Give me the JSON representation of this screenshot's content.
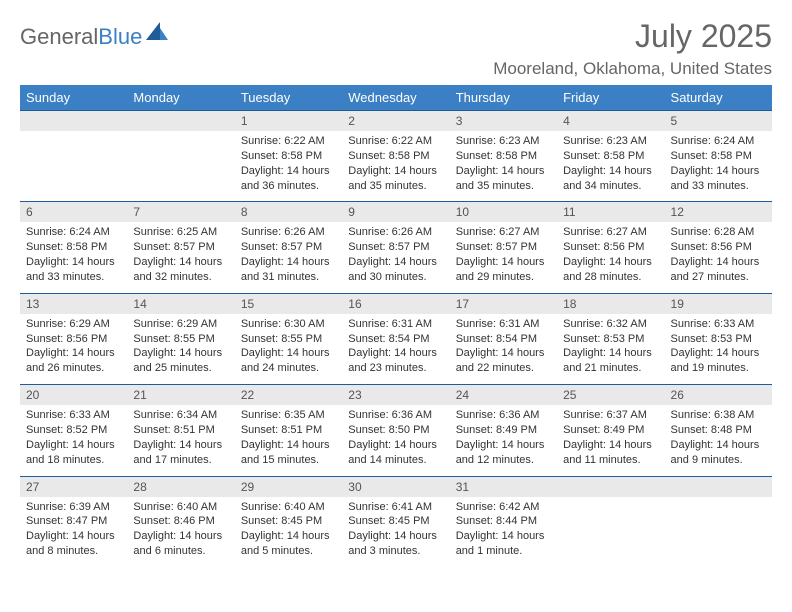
{
  "brand": {
    "part1": "General",
    "part2": "Blue"
  },
  "title": "July 2025",
  "location": "Mooreland, Oklahoma, United States",
  "colors": {
    "header_bg": "#3b7fc4",
    "header_text": "#ffffff",
    "daynum_bg": "#e9e9e9",
    "rule": "#1f5c99",
    "body_text": "#333333",
    "muted_text": "#666666",
    "background": "#ffffff"
  },
  "typography": {
    "font_family": "Arial",
    "title_fontsize": 32,
    "location_fontsize": 17,
    "dayhead_fontsize": 13,
    "daynum_fontsize": 12,
    "data_fontsize": 11
  },
  "day_headers": [
    "Sunday",
    "Monday",
    "Tuesday",
    "Wednesday",
    "Thursday",
    "Friday",
    "Saturday"
  ],
  "weeks": [
    [
      {
        "n": "",
        "sr": "",
        "ss": "",
        "dl": ""
      },
      {
        "n": "",
        "sr": "",
        "ss": "",
        "dl": ""
      },
      {
        "n": "1",
        "sr": "Sunrise: 6:22 AM",
        "ss": "Sunset: 8:58 PM",
        "dl": "Daylight: 14 hours and 36 minutes."
      },
      {
        "n": "2",
        "sr": "Sunrise: 6:22 AM",
        "ss": "Sunset: 8:58 PM",
        "dl": "Daylight: 14 hours and 35 minutes."
      },
      {
        "n": "3",
        "sr": "Sunrise: 6:23 AM",
        "ss": "Sunset: 8:58 PM",
        "dl": "Daylight: 14 hours and 35 minutes."
      },
      {
        "n": "4",
        "sr": "Sunrise: 6:23 AM",
        "ss": "Sunset: 8:58 PM",
        "dl": "Daylight: 14 hours and 34 minutes."
      },
      {
        "n": "5",
        "sr": "Sunrise: 6:24 AM",
        "ss": "Sunset: 8:58 PM",
        "dl": "Daylight: 14 hours and 33 minutes."
      }
    ],
    [
      {
        "n": "6",
        "sr": "Sunrise: 6:24 AM",
        "ss": "Sunset: 8:58 PM",
        "dl": "Daylight: 14 hours and 33 minutes."
      },
      {
        "n": "7",
        "sr": "Sunrise: 6:25 AM",
        "ss": "Sunset: 8:57 PM",
        "dl": "Daylight: 14 hours and 32 minutes."
      },
      {
        "n": "8",
        "sr": "Sunrise: 6:26 AM",
        "ss": "Sunset: 8:57 PM",
        "dl": "Daylight: 14 hours and 31 minutes."
      },
      {
        "n": "9",
        "sr": "Sunrise: 6:26 AM",
        "ss": "Sunset: 8:57 PM",
        "dl": "Daylight: 14 hours and 30 minutes."
      },
      {
        "n": "10",
        "sr": "Sunrise: 6:27 AM",
        "ss": "Sunset: 8:57 PM",
        "dl": "Daylight: 14 hours and 29 minutes."
      },
      {
        "n": "11",
        "sr": "Sunrise: 6:27 AM",
        "ss": "Sunset: 8:56 PM",
        "dl": "Daylight: 14 hours and 28 minutes."
      },
      {
        "n": "12",
        "sr": "Sunrise: 6:28 AM",
        "ss": "Sunset: 8:56 PM",
        "dl": "Daylight: 14 hours and 27 minutes."
      }
    ],
    [
      {
        "n": "13",
        "sr": "Sunrise: 6:29 AM",
        "ss": "Sunset: 8:56 PM",
        "dl": "Daylight: 14 hours and 26 minutes."
      },
      {
        "n": "14",
        "sr": "Sunrise: 6:29 AM",
        "ss": "Sunset: 8:55 PM",
        "dl": "Daylight: 14 hours and 25 minutes."
      },
      {
        "n": "15",
        "sr": "Sunrise: 6:30 AM",
        "ss": "Sunset: 8:55 PM",
        "dl": "Daylight: 14 hours and 24 minutes."
      },
      {
        "n": "16",
        "sr": "Sunrise: 6:31 AM",
        "ss": "Sunset: 8:54 PM",
        "dl": "Daylight: 14 hours and 23 minutes."
      },
      {
        "n": "17",
        "sr": "Sunrise: 6:31 AM",
        "ss": "Sunset: 8:54 PM",
        "dl": "Daylight: 14 hours and 22 minutes."
      },
      {
        "n": "18",
        "sr": "Sunrise: 6:32 AM",
        "ss": "Sunset: 8:53 PM",
        "dl": "Daylight: 14 hours and 21 minutes."
      },
      {
        "n": "19",
        "sr": "Sunrise: 6:33 AM",
        "ss": "Sunset: 8:53 PM",
        "dl": "Daylight: 14 hours and 19 minutes."
      }
    ],
    [
      {
        "n": "20",
        "sr": "Sunrise: 6:33 AM",
        "ss": "Sunset: 8:52 PM",
        "dl": "Daylight: 14 hours and 18 minutes."
      },
      {
        "n": "21",
        "sr": "Sunrise: 6:34 AM",
        "ss": "Sunset: 8:51 PM",
        "dl": "Daylight: 14 hours and 17 minutes."
      },
      {
        "n": "22",
        "sr": "Sunrise: 6:35 AM",
        "ss": "Sunset: 8:51 PM",
        "dl": "Daylight: 14 hours and 15 minutes."
      },
      {
        "n": "23",
        "sr": "Sunrise: 6:36 AM",
        "ss": "Sunset: 8:50 PM",
        "dl": "Daylight: 14 hours and 14 minutes."
      },
      {
        "n": "24",
        "sr": "Sunrise: 6:36 AM",
        "ss": "Sunset: 8:49 PM",
        "dl": "Daylight: 14 hours and 12 minutes."
      },
      {
        "n": "25",
        "sr": "Sunrise: 6:37 AM",
        "ss": "Sunset: 8:49 PM",
        "dl": "Daylight: 14 hours and 11 minutes."
      },
      {
        "n": "26",
        "sr": "Sunrise: 6:38 AM",
        "ss": "Sunset: 8:48 PM",
        "dl": "Daylight: 14 hours and 9 minutes."
      }
    ],
    [
      {
        "n": "27",
        "sr": "Sunrise: 6:39 AM",
        "ss": "Sunset: 8:47 PM",
        "dl": "Daylight: 14 hours and 8 minutes."
      },
      {
        "n": "28",
        "sr": "Sunrise: 6:40 AM",
        "ss": "Sunset: 8:46 PM",
        "dl": "Daylight: 14 hours and 6 minutes."
      },
      {
        "n": "29",
        "sr": "Sunrise: 6:40 AM",
        "ss": "Sunset: 8:45 PM",
        "dl": "Daylight: 14 hours and 5 minutes."
      },
      {
        "n": "30",
        "sr": "Sunrise: 6:41 AM",
        "ss": "Sunset: 8:45 PM",
        "dl": "Daylight: 14 hours and 3 minutes."
      },
      {
        "n": "31",
        "sr": "Sunrise: 6:42 AM",
        "ss": "Sunset: 8:44 PM",
        "dl": "Daylight: 14 hours and 1 minute."
      },
      {
        "n": "",
        "sr": "",
        "ss": "",
        "dl": ""
      },
      {
        "n": "",
        "sr": "",
        "ss": "",
        "dl": ""
      }
    ]
  ]
}
